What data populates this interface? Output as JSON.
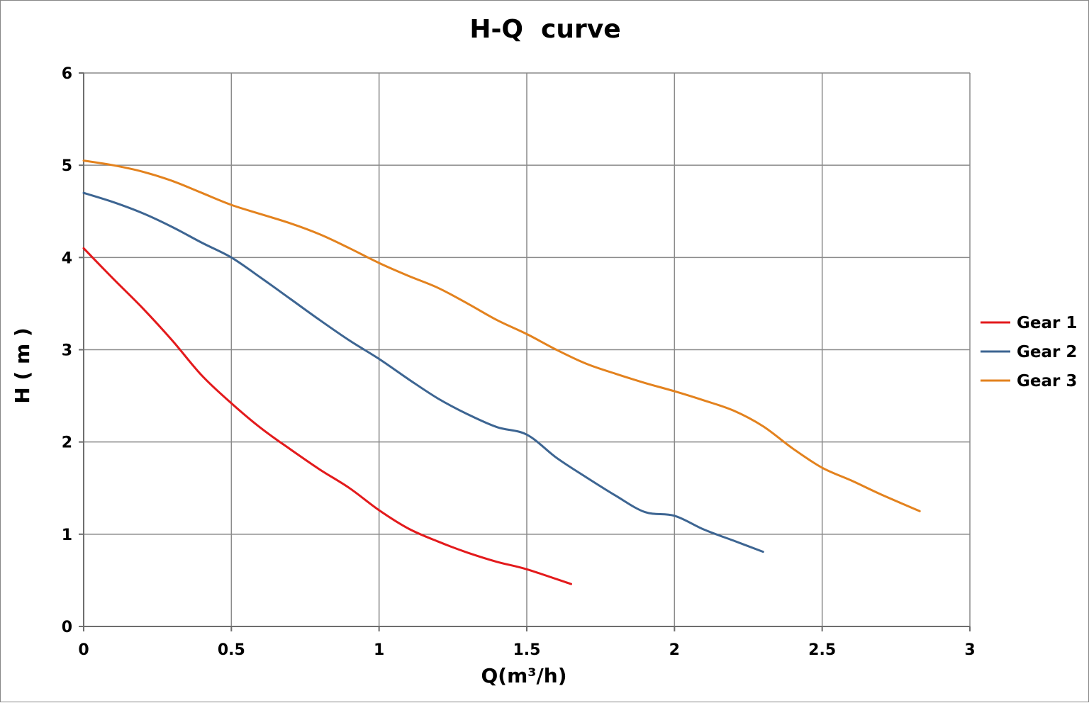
{
  "chart_data": {
    "type": "line",
    "title": "H-Q  curve",
    "xlabel": "Q(m³/h)",
    "ylabel": "H ( m )",
    "xlim": [
      0,
      3
    ],
    "ylim": [
      0,
      6
    ],
    "x_ticks": [
      "0",
      "0.5",
      "1",
      "1.5",
      "2",
      "2.5",
      "3"
    ],
    "y_ticks": [
      "0",
      "1",
      "2",
      "3",
      "4",
      "5",
      "6"
    ],
    "grid": true,
    "legend_position": "right",
    "series": [
      {
        "name": "Gear 1",
        "color": "#e31a1c",
        "x": [
          0,
          0.1,
          0.2,
          0.3,
          0.4,
          0.5,
          0.6,
          0.7,
          0.8,
          0.9,
          1.0,
          1.1,
          1.2,
          1.3,
          1.4,
          1.5,
          1.65
        ],
        "y": [
          4.1,
          3.77,
          3.45,
          3.1,
          2.72,
          2.42,
          2.15,
          1.92,
          1.7,
          1.5,
          1.26,
          1.06,
          0.92,
          0.8,
          0.7,
          0.62,
          0.46
        ]
      },
      {
        "name": "Gear 2",
        "color": "#3d6592",
        "x": [
          0,
          0.1,
          0.2,
          0.3,
          0.4,
          0.5,
          0.6,
          0.7,
          0.8,
          0.9,
          1.0,
          1.1,
          1.2,
          1.3,
          1.4,
          1.5,
          1.6,
          1.7,
          1.8,
          1.9,
          2.0,
          2.1,
          2.2,
          2.3
        ],
        "y": [
          4.7,
          4.6,
          4.48,
          4.33,
          4.16,
          4.0,
          3.78,
          3.55,
          3.32,
          3.1,
          2.9,
          2.68,
          2.47,
          2.3,
          2.16,
          2.08,
          1.83,
          1.62,
          1.42,
          1.24,
          1.2,
          1.05,
          0.93,
          0.81
        ]
      },
      {
        "name": "Gear 3",
        "color": "#e3821e",
        "x": [
          0,
          0.1,
          0.2,
          0.3,
          0.4,
          0.5,
          0.6,
          0.7,
          0.8,
          0.9,
          1.0,
          1.1,
          1.2,
          1.3,
          1.4,
          1.5,
          1.6,
          1.7,
          1.8,
          1.9,
          2.0,
          2.1,
          2.2,
          2.3,
          2.4,
          2.5,
          2.6,
          2.7,
          2.83
        ],
        "y": [
          5.05,
          5.0,
          4.93,
          4.83,
          4.7,
          4.57,
          4.47,
          4.37,
          4.25,
          4.1,
          3.94,
          3.8,
          3.67,
          3.5,
          3.32,
          3.17,
          3.0,
          2.85,
          2.74,
          2.64,
          2.55,
          2.45,
          2.34,
          2.17,
          1.93,
          1.72,
          1.58,
          1.43,
          1.25
        ]
      }
    ]
  }
}
